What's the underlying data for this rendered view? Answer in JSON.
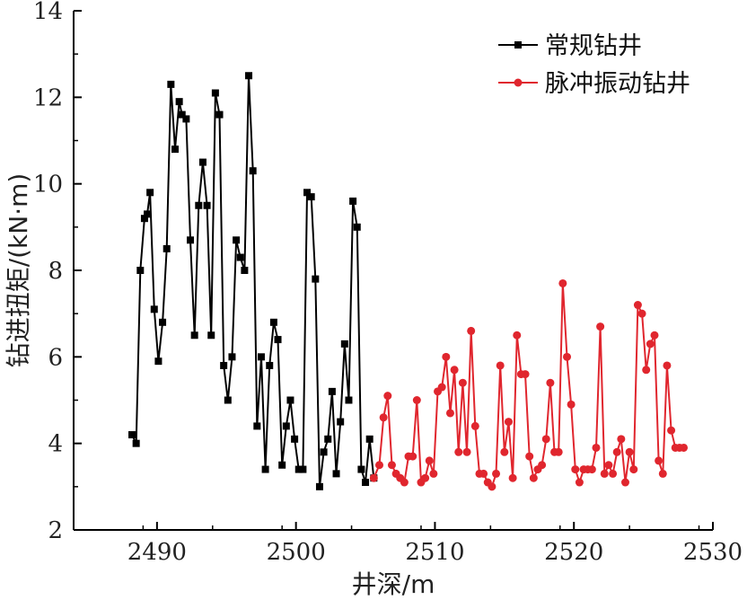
{
  "chart_data": {
    "type": "line",
    "title": "",
    "xlabel": "井深/m",
    "ylabel": "钻进扭矩/(kN·m)",
    "xlim": [
      2484,
      2530
    ],
    "ylim": [
      2,
      14
    ],
    "xticks": [
      2490,
      2500,
      2510,
      2520,
      2530
    ],
    "yticks": [
      2,
      4,
      6,
      8,
      10,
      12,
      14
    ],
    "grid": false,
    "legend_position": "top-right",
    "series": [
      {
        "name": "常规钻井",
        "color": "#000000",
        "marker": "square",
        "x": [
          2488.2,
          2488.5,
          2488.8,
          2489.1,
          2489.3,
          2489.5,
          2489.8,
          2490.1,
          2490.4,
          2490.7,
          2491.0,
          2491.3,
          2491.6,
          2491.8,
          2492.1,
          2492.4,
          2492.7,
          2493.0,
          2493.3,
          2493.6,
          2493.9,
          2494.2,
          2494.5,
          2494.8,
          2495.1,
          2495.4,
          2495.7,
          2496.0,
          2496.3,
          2496.6,
          2496.9,
          2497.2,
          2497.5,
          2497.8,
          2498.1,
          2498.4,
          2498.7,
          2499.0,
          2499.3,
          2499.6,
          2499.9,
          2500.2,
          2500.5,
          2500.8,
          2501.1,
          2501.4,
          2501.7,
          2502.0,
          2502.3,
          2502.6,
          2502.9,
          2503.2,
          2503.5,
          2503.8,
          2504.1,
          2504.4,
          2504.7,
          2505.0,
          2505.3,
          2505.6
        ],
        "y": [
          4.2,
          4.0,
          8.0,
          9.2,
          9.3,
          9.8,
          7.1,
          5.9,
          6.8,
          8.5,
          12.3,
          10.8,
          11.9,
          11.6,
          11.5,
          8.7,
          6.5,
          9.5,
          10.5,
          9.5,
          6.5,
          12.1,
          11.6,
          5.8,
          5.0,
          6.0,
          8.7,
          8.3,
          8.0,
          12.5,
          10.3,
          4.4,
          6.0,
          3.4,
          5.8,
          6.8,
          6.4,
          3.5,
          4.4,
          5.0,
          4.1,
          3.4,
          3.4,
          9.8,
          9.7,
          7.8,
          3.0,
          3.8,
          4.1,
          5.2,
          3.3,
          4.5,
          6.3,
          5.0,
          9.6,
          9.0,
          3.4,
          3.1,
          4.1,
          3.2
        ]
      },
      {
        "name": "脉冲振动钻井",
        "color": "#e0262e",
        "marker": "circle",
        "x": [
          2505.6,
          2506.0,
          2506.3,
          2506.6,
          2506.9,
          2507.2,
          2507.5,
          2507.8,
          2508.1,
          2508.4,
          2508.7,
          2509.0,
          2509.3,
          2509.6,
          2509.9,
          2510.2,
          2510.5,
          2510.8,
          2511.1,
          2511.4,
          2511.7,
          2512.0,
          2512.3,
          2512.6,
          2512.9,
          2513.2,
          2513.5,
          2513.8,
          2514.1,
          2514.4,
          2514.7,
          2515.0,
          2515.3,
          2515.6,
          2515.9,
          2516.2,
          2516.5,
          2516.8,
          2517.1,
          2517.4,
          2517.7,
          2518.0,
          2518.3,
          2518.6,
          2518.9,
          2519.2,
          2519.5,
          2519.8,
          2520.1,
          2520.4,
          2520.7,
          2521.0,
          2521.3,
          2521.6,
          2521.9,
          2522.2,
          2522.5,
          2522.8,
          2523.1,
          2523.4,
          2523.7,
          2524.0,
          2524.3,
          2524.6,
          2524.9,
          2525.2,
          2525.5,
          2525.8,
          2526.1,
          2526.4,
          2526.7,
          2527.0,
          2527.3,
          2527.6,
          2527.9
        ],
        "y": [
          3.2,
          3.5,
          4.6,
          5.1,
          3.5,
          3.3,
          3.2,
          3.1,
          3.7,
          3.7,
          5.0,
          3.1,
          3.2,
          3.6,
          3.3,
          5.2,
          5.3,
          6.0,
          4.7,
          5.7,
          3.8,
          5.4,
          3.8,
          6.6,
          4.4,
          3.3,
          3.3,
          3.1,
          3.0,
          3.3,
          5.8,
          3.8,
          4.5,
          3.2,
          6.5,
          5.6,
          5.6,
          3.7,
          3.2,
          3.4,
          3.5,
          4.1,
          5.4,
          3.8,
          3.8,
          7.7,
          6.0,
          4.9,
          3.4,
          3.1,
          3.4,
          3.4,
          3.4,
          3.9,
          6.7,
          3.3,
          3.5,
          3.3,
          3.8,
          4.1,
          3.1,
          3.8,
          3.4,
          7.2,
          7.0,
          5.7,
          6.3,
          6.5,
          3.6,
          3.3,
          5.8,
          4.3,
          3.9,
          3.9,
          3.9
        ]
      }
    ]
  }
}
